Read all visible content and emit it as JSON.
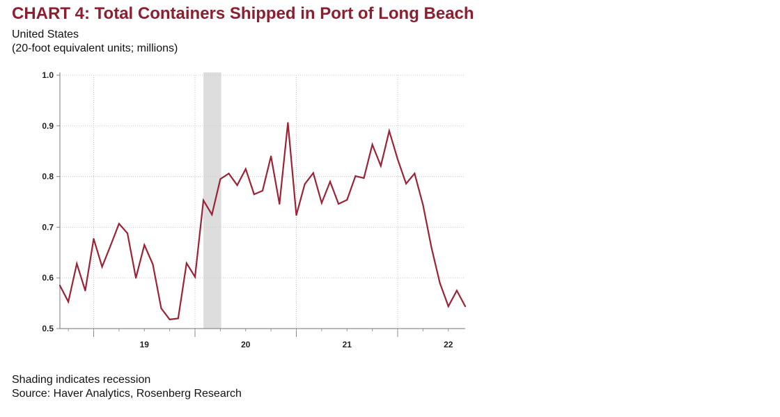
{
  "header": {
    "title": "CHART 4: Total Containers Shipped in Port of Long Beach",
    "subtitle_line1": "United States",
    "subtitle_line2": "(20-foot equivalent units; millions)"
  },
  "footer": {
    "note": "Shading indicates recession",
    "source": "Source: Haver Analytics, Rosenberg Research"
  },
  "colors": {
    "line": "#9b2335",
    "title": "#8b1f30",
    "recession": "#dddddd",
    "grid": "#c8c8c8"
  },
  "chart_data": {
    "type": "line",
    "title": "CHART 4: Total Containers Shipped in Port of Long Beach",
    "xlabel": "",
    "ylabel": "",
    "ylim": [
      0.5,
      1.0
    ],
    "xlim": [
      "2018-09",
      "2022-09"
    ],
    "y_ticks": [
      "1.0",
      "0.9",
      "0.8",
      "0.7",
      "0.6",
      "0.5"
    ],
    "x_tick_labels": [
      {
        "label": "19",
        "x": "2019-07"
      },
      {
        "label": "20",
        "x": "2020-07"
      },
      {
        "label": "21",
        "x": "2021-07"
      },
      {
        "label": "22",
        "x": "2022-07"
      }
    ],
    "recession": {
      "start": "2020-02",
      "end": "2020-04"
    },
    "grid": true,
    "series": [
      {
        "x": [
          "2018-09",
          "2018-10",
          "2018-11",
          "2018-12",
          "2019-01",
          "2019-02",
          "2019-03",
          "2019-04",
          "2019-05",
          "2019-06",
          "2019-07",
          "2019-08",
          "2019-09",
          "2019-10",
          "2019-11",
          "2019-12",
          "2020-01",
          "2020-02",
          "2020-03",
          "2020-04",
          "2020-05",
          "2020-06",
          "2020-07",
          "2020-08",
          "2020-09",
          "2020-10",
          "2020-11",
          "2020-12",
          "2021-01",
          "2021-02",
          "2021-03",
          "2021-04",
          "2021-05",
          "2021-06",
          "2021-07",
          "2021-08",
          "2021-09",
          "2021-10",
          "2021-11",
          "2021-12",
          "2022-01",
          "2022-02",
          "2022-03",
          "2022-04",
          "2022-05",
          "2022-06",
          "2022-07",
          "2022-08",
          "2022-09"
        ],
        "values": [
          0.585,
          0.553,
          0.628,
          0.575,
          0.677,
          0.622,
          0.664,
          0.707,
          0.688,
          0.6,
          0.665,
          0.627,
          0.54,
          0.518,
          0.52,
          0.629,
          0.602,
          0.753,
          0.725,
          0.795,
          0.806,
          0.783,
          0.815,
          0.765,
          0.772,
          0.84,
          0.746,
          0.906,
          0.724,
          0.785,
          0.807,
          0.748,
          0.79,
          0.746,
          0.754,
          0.801,
          0.797,
          0.863,
          0.821,
          0.89,
          0.834,
          0.786,
          0.806,
          0.744,
          0.66,
          0.59,
          0.544,
          0.575,
          0.544
        ]
      }
    ]
  }
}
